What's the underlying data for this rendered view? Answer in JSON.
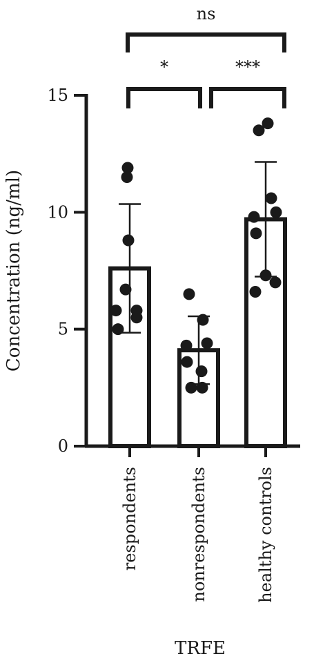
{
  "chart_data": {
    "type": "bar",
    "xlabel": "TRFE",
    "ylabel": "Concentration (ng/ml)",
    "ylim": [
      0,
      15
    ],
    "yticks": [
      0,
      5,
      10,
      15
    ],
    "categories": [
      "respondents",
      "nonrespondents",
      "healthy controls"
    ],
    "means": [
      7.6,
      4.1,
      9.7
    ],
    "sd": [
      2.75,
      1.45,
      2.45
    ],
    "points": [
      [
        11.9,
        11.5,
        8.8,
        6.7,
        5.8,
        5.5,
        5.8,
        5.0
      ],
      [
        6.5,
        5.4,
        4.3,
        4.4,
        3.6,
        3.2,
        2.5,
        2.5
      ],
      [
        13.5,
        13.8,
        10.6,
        9.8,
        10.0,
        9.1,
        7.3,
        6.6,
        7.0
      ]
    ],
    "colors": {
      "ink": "#1a1a1a",
      "fill": "#ffffff"
    },
    "significance": [
      {
        "from": 0,
        "to": 2,
        "label": "ns",
        "level": "top"
      },
      {
        "from": 0,
        "to": 1,
        "label": "*",
        "level": "lower"
      },
      {
        "from": 1,
        "to": 2,
        "label": "***",
        "level": "lower"
      }
    ]
  }
}
